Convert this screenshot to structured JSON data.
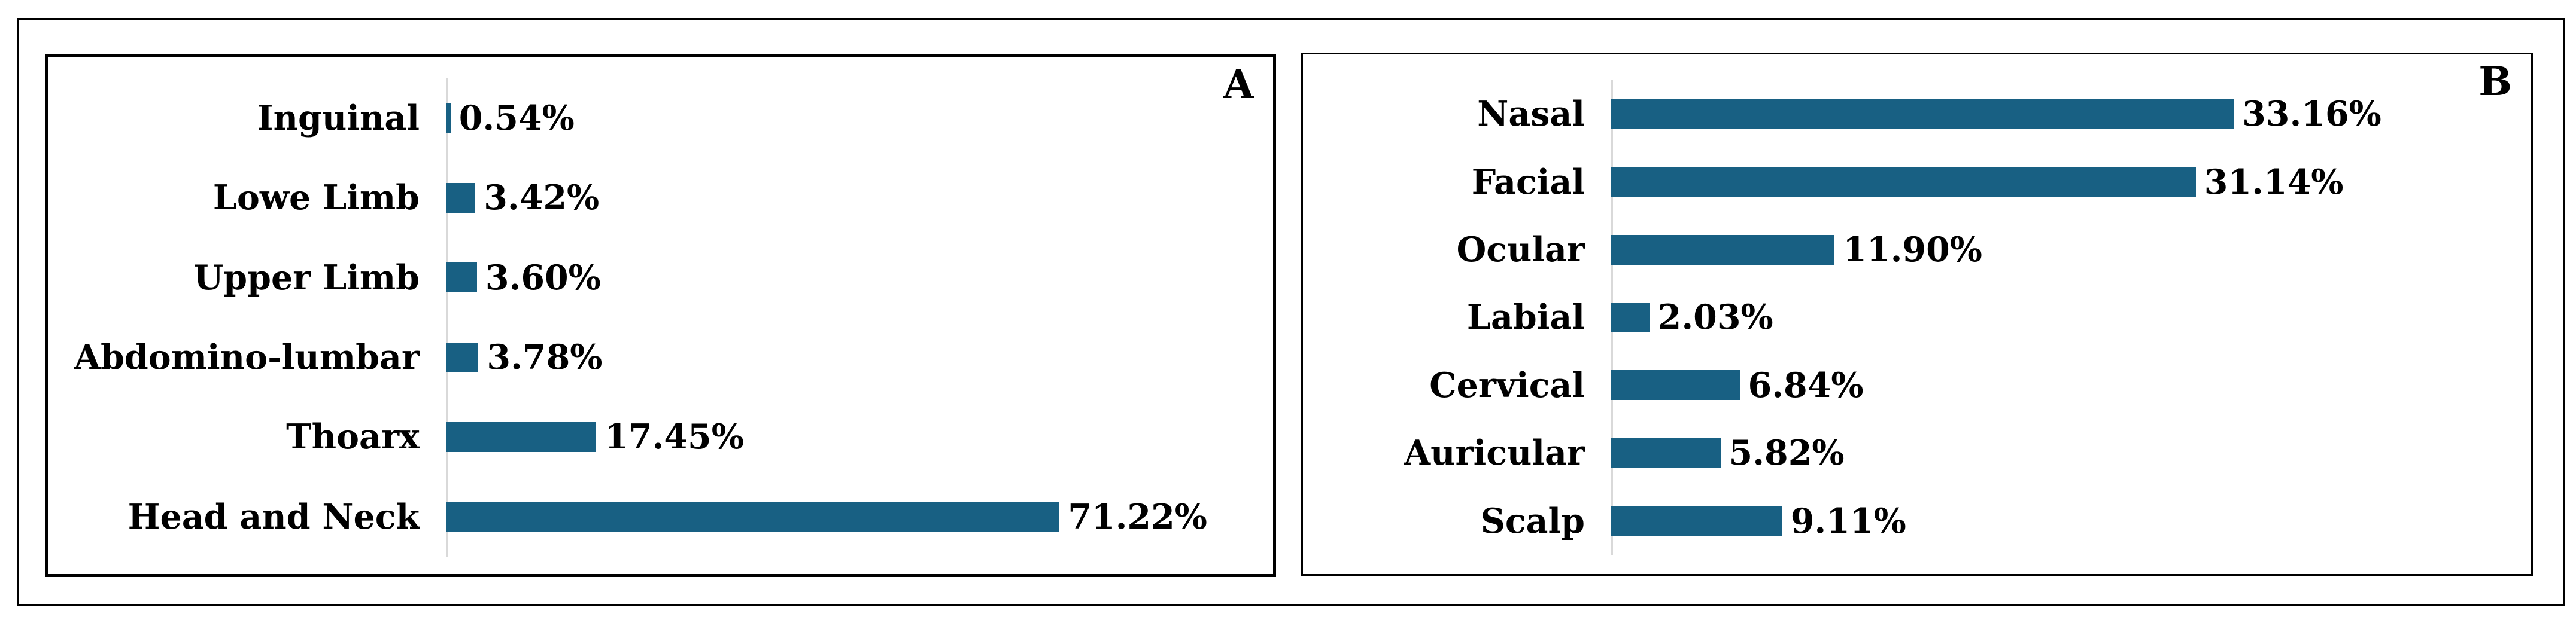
{
  "figure": {
    "background_color": "#ffffff",
    "frame_color": "#000000",
    "text_color": "#000000"
  },
  "chart_data": [
    {
      "panel_label": "A",
      "type": "bar",
      "orientation": "horizontal",
      "categories": [
        "Inguinal",
        "Lowe Limb",
        "Upper Limb",
        "Abdomino-lumbar",
        "Thoarx",
        "Head and Neck"
      ],
      "values": [
        0.54,
        3.42,
        3.6,
        3.78,
        17.45,
        71.22
      ],
      "value_labels": [
        "0.54%",
        "3.42%",
        "3.60%",
        "3.78%",
        "17.45%",
        "71.22%"
      ],
      "title": "",
      "xlabel": "",
      "ylabel": "",
      "xlim": [
        0,
        96
      ],
      "grid": false,
      "legend": "none",
      "data_labels": "outside-end",
      "bar_color": "#186083",
      "axis_line_color": "#D9D9D9"
    },
    {
      "panel_label": "B",
      "type": "bar",
      "orientation": "horizontal",
      "categories": [
        "Nasal",
        "Facial",
        "Ocular",
        "Labial",
        "Cervical",
        "Auricular",
        "Scalp"
      ],
      "values": [
        33.16,
        31.14,
        11.9,
        2.03,
        6.84,
        5.82,
        9.11
      ],
      "value_labels": [
        "33.16%",
        "31.14%",
        "11.90%",
        "2.03%",
        "6.84%",
        "5.82%",
        "9.11%"
      ],
      "title": "",
      "xlabel": "",
      "ylabel": "",
      "xlim": [
        0,
        49
      ],
      "grid": false,
      "legend": "none",
      "data_labels": "outside-end",
      "bar_color": "#186083",
      "axis_line_color": "#D9D9D9"
    }
  ]
}
